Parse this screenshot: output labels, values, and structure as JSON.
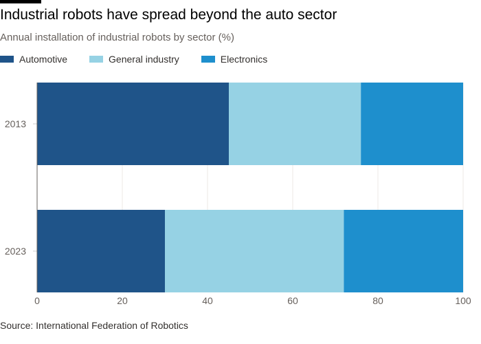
{
  "title": "Industrial robots have spread beyond the auto sector",
  "subtitle": "Annual installation of industrial robots by sector (%)",
  "source": "Source: International Federation of Robotics",
  "chart_data": {
    "type": "bar",
    "orientation": "horizontal",
    "stacked": true,
    "categories": [
      "2013",
      "2023"
    ],
    "series": [
      {
        "name": "Automotive",
        "color": "#1f5489",
        "values": [
          45,
          30
        ]
      },
      {
        "name": "General industry",
        "color": "#96d2e4",
        "values": [
          31,
          42
        ]
      },
      {
        "name": "Electronics",
        "color": "#1e8fcd",
        "values": [
          24,
          28
        ]
      }
    ],
    "xlim": [
      0,
      100
    ],
    "xticks": [
      "0",
      "20",
      "40",
      "60",
      "80",
      "100"
    ],
    "grid": true,
    "legend": "top-left"
  }
}
